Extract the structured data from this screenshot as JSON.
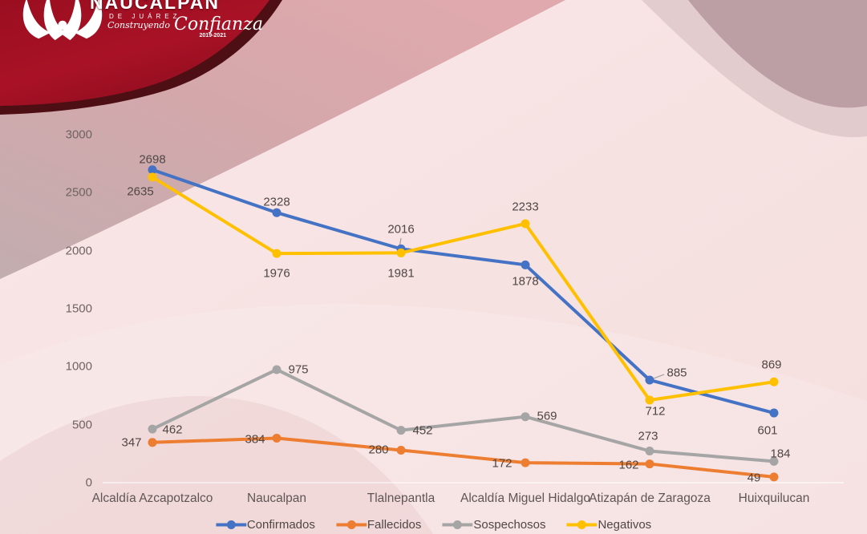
{
  "logo": {
    "title": "NAUCALPAN",
    "subtitle": "DE JUÁREZ",
    "tagline_script_1": "Construyendo",
    "tagline_script_2": "Confianza",
    "years": "2019-2021"
  },
  "chart_data": {
    "type": "line",
    "categories": [
      "Alcaldía Azcapotzalco",
      "Naucalpan",
      "Tlalnepantla",
      "Alcaldía Miguel Hidalgo",
      "Atizapán de Zaragoza",
      "Huixquilucan"
    ],
    "series": [
      {
        "name": "Confirmados",
        "color": "#4472C4",
        "values": [
          2698,
          2328,
          2016,
          1878,
          885,
          601
        ]
      },
      {
        "name": "Fallecidos",
        "color": "#ED7D31",
        "values": [
          347,
          384,
          280,
          172,
          162,
          49
        ]
      },
      {
        "name": "Sospechosos",
        "color": "#A5A5A5",
        "values": [
          462,
          975,
          452,
          569,
          273,
          184
        ]
      },
      {
        "name": "Negativos",
        "color": "#FFC000",
        "values": [
          2635,
          1976,
          1981,
          2233,
          712,
          869
        ]
      }
    ],
    "y_ticks": [
      0,
      500,
      1000,
      1500,
      2000,
      2500,
      3000
    ],
    "ylim": [
      0,
      3000
    ],
    "grid": false,
    "legend_position": "bottom",
    "data_labels": true,
    "label_color": "#4f4744",
    "background_colors": {
      "base_pink": "#f7e3e3",
      "dark_red": "#a01022",
      "maroon_rim": "#4e0f14",
      "rose_band": "#dba6aa",
      "mauve": "#bb9fa4"
    }
  }
}
